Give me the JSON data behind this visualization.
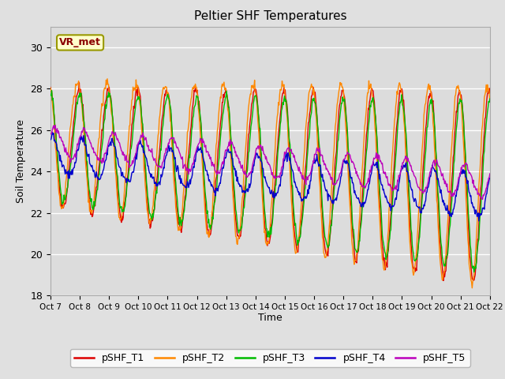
{
  "title": "Peltier SHF Temperatures",
  "ylabel": "Soil Temperature",
  "xlabel": "Time",
  "annotation": "VR_met",
  "ylim": [
    18,
    31
  ],
  "yticks": [
    18,
    20,
    22,
    24,
    26,
    28,
    30
  ],
  "x_labels": [
    "Oct 7",
    "Oct 8",
    "Oct 9",
    "Oct 10",
    "Oct 11",
    "Oct 12",
    "Oct 13",
    "Oct 14",
    "Oct 15",
    "Oct 16",
    "Oct 17",
    "Oct 18",
    "Oct 19",
    "Oct 20",
    "Oct 21",
    "Oct 22"
  ],
  "colors": {
    "pSHF_T1": "#dd0000",
    "pSHF_T2": "#ff8800",
    "pSHF_T3": "#00bb00",
    "pSHF_T4": "#0000cc",
    "pSHF_T5": "#bb00bb"
  },
  "legend_labels": [
    "pSHF_T1",
    "pSHF_T2",
    "pSHF_T3",
    "pSHF_T4",
    "pSHF_T5"
  ],
  "outer_bg": "#e0e0e0",
  "plot_bg": "#dcdcdc",
  "inner_bg": "#e8e8e8",
  "grid_color": "#ffffff",
  "n_points": 720,
  "duration_days": 15
}
